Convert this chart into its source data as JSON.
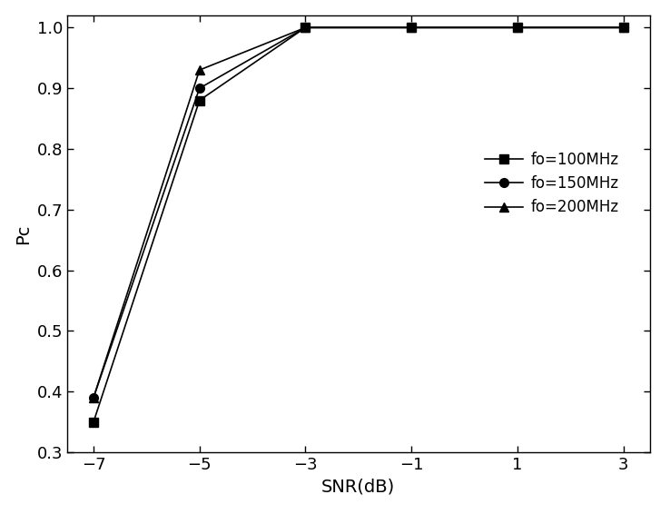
{
  "x": [
    -7,
    -5,
    -3,
    -1,
    1,
    3
  ],
  "series": [
    {
      "label": "fo=100MHz",
      "y": [
        0.35,
        0.88,
        1.0,
        1.0,
        1.0,
        1.0
      ],
      "marker": "s",
      "color": "#000000",
      "markersize": 7,
      "linestyle": "-"
    },
    {
      "label": "fo=150MHz",
      "y": [
        0.39,
        0.9,
        1.0,
        1.0,
        1.0,
        1.0
      ],
      "marker": "o",
      "color": "#000000",
      "markersize": 7,
      "linestyle": "-"
    },
    {
      "label": "fo=200MHz",
      "y": [
        0.39,
        0.93,
        1.0,
        1.0,
        1.0,
        1.0
      ],
      "marker": "^",
      "color": "#000000",
      "markersize": 7,
      "linestyle": "-"
    }
  ],
  "xlabel": "SNR(dB)",
  "ylabel": "Pc",
  "xlim": [
    -7.5,
    3.5
  ],
  "ylim": [
    0.3,
    1.02
  ],
  "xticks": [
    -7,
    -5,
    -3,
    -1,
    1,
    3
  ],
  "yticks": [
    0.3,
    0.4,
    0.5,
    0.6,
    0.7,
    0.8,
    0.9,
    1.0
  ],
  "background_color": "#ffffff",
  "linewidth": 1.2,
  "xlabel_fontsize": 14,
  "ylabel_fontsize": 14,
  "tick_labelsize": 13,
  "legend_fontsize": 12
}
